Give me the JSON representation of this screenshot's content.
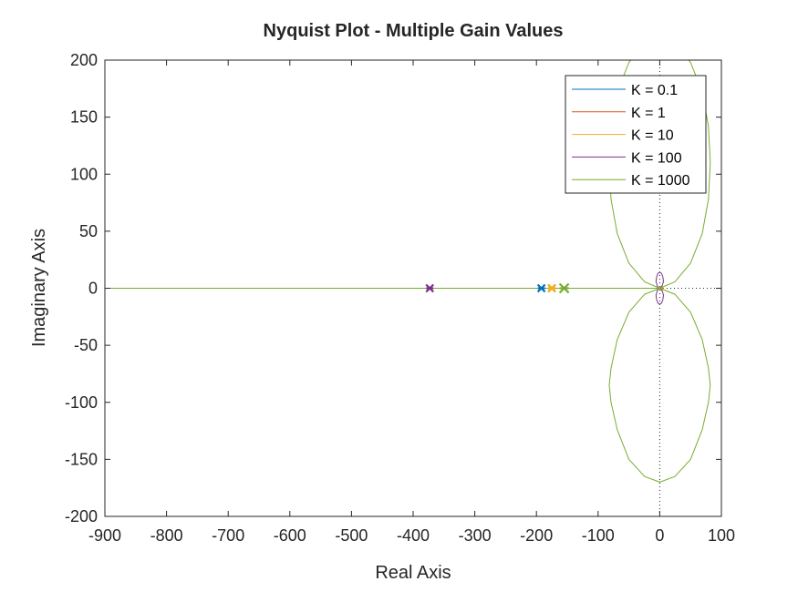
{
  "chart_data": {
    "type": "line",
    "title": "Nyquist Plot - Multiple Gain Values",
    "xlabel": "Real Axis",
    "ylabel": "Imaginary Axis",
    "xlim": [
      -900,
      100
    ],
    "ylim": [
      -200,
      200
    ],
    "xticks": [
      -900,
      -800,
      -700,
      -600,
      -500,
      -400,
      -300,
      -200,
      -100,
      0,
      100
    ],
    "yticks": [
      -200,
      -150,
      -100,
      -50,
      0,
      50,
      100,
      150,
      200
    ],
    "xtick_labels": [
      "-900",
      "-800",
      "-700",
      "-600",
      "-500",
      "-400",
      "-300",
      "-200",
      "-100",
      "0",
      "100"
    ],
    "ytick_labels": [
      "-200",
      "-150",
      "-100",
      "-50",
      "0",
      "50",
      "100",
      "150",
      "200"
    ],
    "grid": false,
    "legend_position": "top-right",
    "reference_lines": {
      "x": 0,
      "y": 0,
      "style": "dotted"
    },
    "series": [
      {
        "name": "K = 0.1",
        "color": "#0072BD",
        "marker_x": -192,
        "branches": [
          {
            "x": [
              -900,
              -192,
              -100,
              -40,
              -10,
              0,
              2,
              0
            ],
            "y": [
              0,
              0,
              0,
              0,
              0,
              0,
              0.1,
              0
            ]
          }
        ]
      },
      {
        "name": "K = 1",
        "color": "#D95319",
        "marker_x": -175,
        "branches": [
          {
            "x": [
              -900,
              -175,
              -100,
              -40,
              -10,
              0,
              3,
              6,
              3,
              0
            ],
            "y": [
              0,
              0,
              0,
              0,
              0,
              0,
              0.3,
              0,
              -0.3,
              0
            ]
          }
        ]
      },
      {
        "name": "K = 10",
        "color": "#EDB120",
        "marker_x": -175,
        "branches": [
          {
            "x": [
              -900,
              -175,
              -100,
              -40,
              -10,
              0,
              2,
              4,
              2,
              0
            ],
            "y": [
              0,
              0,
              0,
              0,
              0,
              0,
              2,
              0,
              -2,
              0
            ]
          }
        ]
      },
      {
        "name": "K = 100",
        "color": "#7E2F8E",
        "marker_x": -373,
        "branches": [
          {
            "x": [
              0,
              3.5,
              6,
              5,
              3,
              0,
              -3,
              -5,
              -6,
              -3.5,
              0
            ],
            "y": [
              0,
              1.5,
              6,
              10,
              13,
              14,
              13,
              10,
              6,
              1.5,
              0
            ]
          },
          {
            "x": [
              0,
              3.5,
              6,
              5,
              3,
              0,
              -3,
              -5,
              -6,
              -3.5,
              0
            ],
            "y": [
              0,
              -1.5,
              -6,
              -10,
              -13,
              -14,
              -13,
              -10,
              -6,
              -1.5,
              0
            ]
          }
        ]
      },
      {
        "name": "K = 1000",
        "color": "#77AC30",
        "marker_x": -155,
        "branches": [
          {
            "x": [
              -900,
              -155,
              -60,
              -10,
              -3,
              0
            ],
            "y": [
              0,
              0,
              0,
              0,
              0,
              0
            ]
          },
          {
            "x": [
              0,
              24.5,
              50,
              69,
              79,
              82,
              79,
              69,
              50,
              24.5,
              0,
              -24.5,
              -50,
              -69,
              -79,
              -82,
              -79,
              -69,
              -50,
              -24.5,
              0
            ],
            "y": [
              0,
              5.7,
              22,
              48,
              78,
              110,
              142,
              172,
              198,
              214,
              218,
              214,
              198,
              172,
              142,
              110,
              78,
              48,
              22,
              5.7,
              0
            ]
          },
          {
            "x": [
              0,
              24.5,
              50,
              69,
              79,
              82,
              79,
              69,
              50,
              24.5,
              0,
              -24.5,
              -50,
              -69,
              -79,
              -82,
              -79,
              -69,
              -50,
              -24.5,
              0
            ],
            "y": [
              0,
              -5.3,
              -21,
              -45,
              -70,
              -85,
              -100,
              -124,
              -150,
              -165,
              -170,
              -165,
              -150,
              -124,
              -100,
              -85,
              -70,
              -45,
              -21,
              -5.3,
              0
            ]
          }
        ]
      }
    ]
  }
}
